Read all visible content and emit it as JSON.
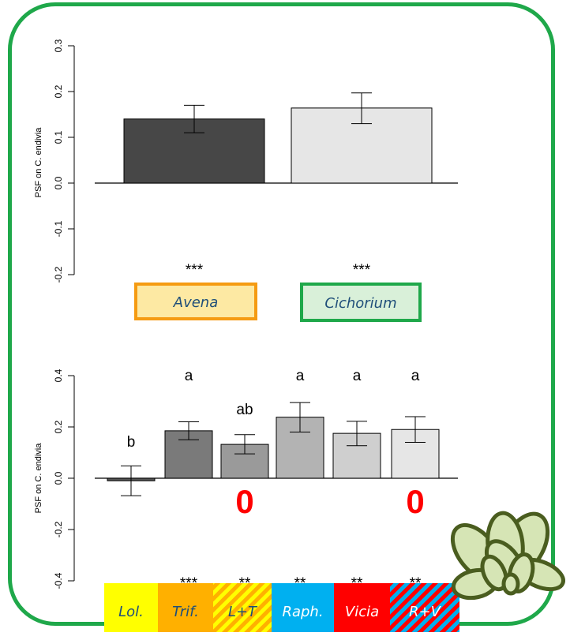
{
  "colors": {
    "frame": "#1fa84a",
    "avena_fill": "#fde9a3",
    "avena_border": "#f59b12",
    "cichorium_fill": "#d9f0d9",
    "cichorium_border": "#1fa84a",
    "label_text": "#1f4e79",
    "zero_mark": "#ff0000"
  },
  "chart_data": [
    {
      "type": "bar",
      "ylabel": "PSF on C. endivia",
      "ylim": [
        -0.2,
        0.3
      ],
      "yticks": [
        "-0.2",
        "-0.1",
        "0.0",
        "0.1",
        "0.2",
        "0.3"
      ],
      "categories": [
        "Avena",
        "Cichorium"
      ],
      "values": [
        0.14,
        0.164
      ],
      "error_low": [
        0.11,
        0.13
      ],
      "error_high": [
        0.17,
        0.197
      ],
      "bar_colors": [
        "#474747",
        "#e6e6e6"
      ],
      "significance": [
        "***",
        "***"
      ]
    },
    {
      "type": "bar",
      "ylabel": "PSF on C. endivia",
      "ylim": [
        -0.4,
        0.4
      ],
      "yticks": [
        "-0.4",
        "-0.2",
        "0.0",
        "0.2",
        "0.4"
      ],
      "categories": [
        "Lol.",
        "Trif.",
        "L+T",
        "Raph.",
        "Vicia",
        "R+V"
      ],
      "values": [
        -0.01,
        0.185,
        0.132,
        0.238,
        0.175,
        0.19
      ],
      "error_low": [
        -0.068,
        0.15,
        0.095,
        0.18,
        0.127,
        0.14
      ],
      "error_high": [
        0.048,
        0.22,
        0.17,
        0.295,
        0.222,
        0.24
      ],
      "bar_colors": [
        "#555555",
        "#7a7a7a",
        "#9a9a9a",
        "#b3b3b3",
        "#cfcfcf",
        "#e6e6e6"
      ],
      "letters": [
        "b",
        "a",
        "ab",
        "a",
        "a",
        "a"
      ],
      "significance": [
        "",
        "***",
        "**",
        "**",
        "**",
        "**"
      ],
      "zero_marks": [
        "",
        "",
        "0",
        "",
        "",
        "0"
      ],
      "label_colors": [
        "#ffff00",
        "#ffb000",
        "#ffb000",
        "#00b0f0",
        "#ff0000",
        "#00b0f0"
      ],
      "label_text_colors": [
        "#1f4e79",
        "#1f4e79",
        "#1f4e79",
        "#ffffff",
        "#ffffff",
        "#ffffff"
      ]
    }
  ]
}
